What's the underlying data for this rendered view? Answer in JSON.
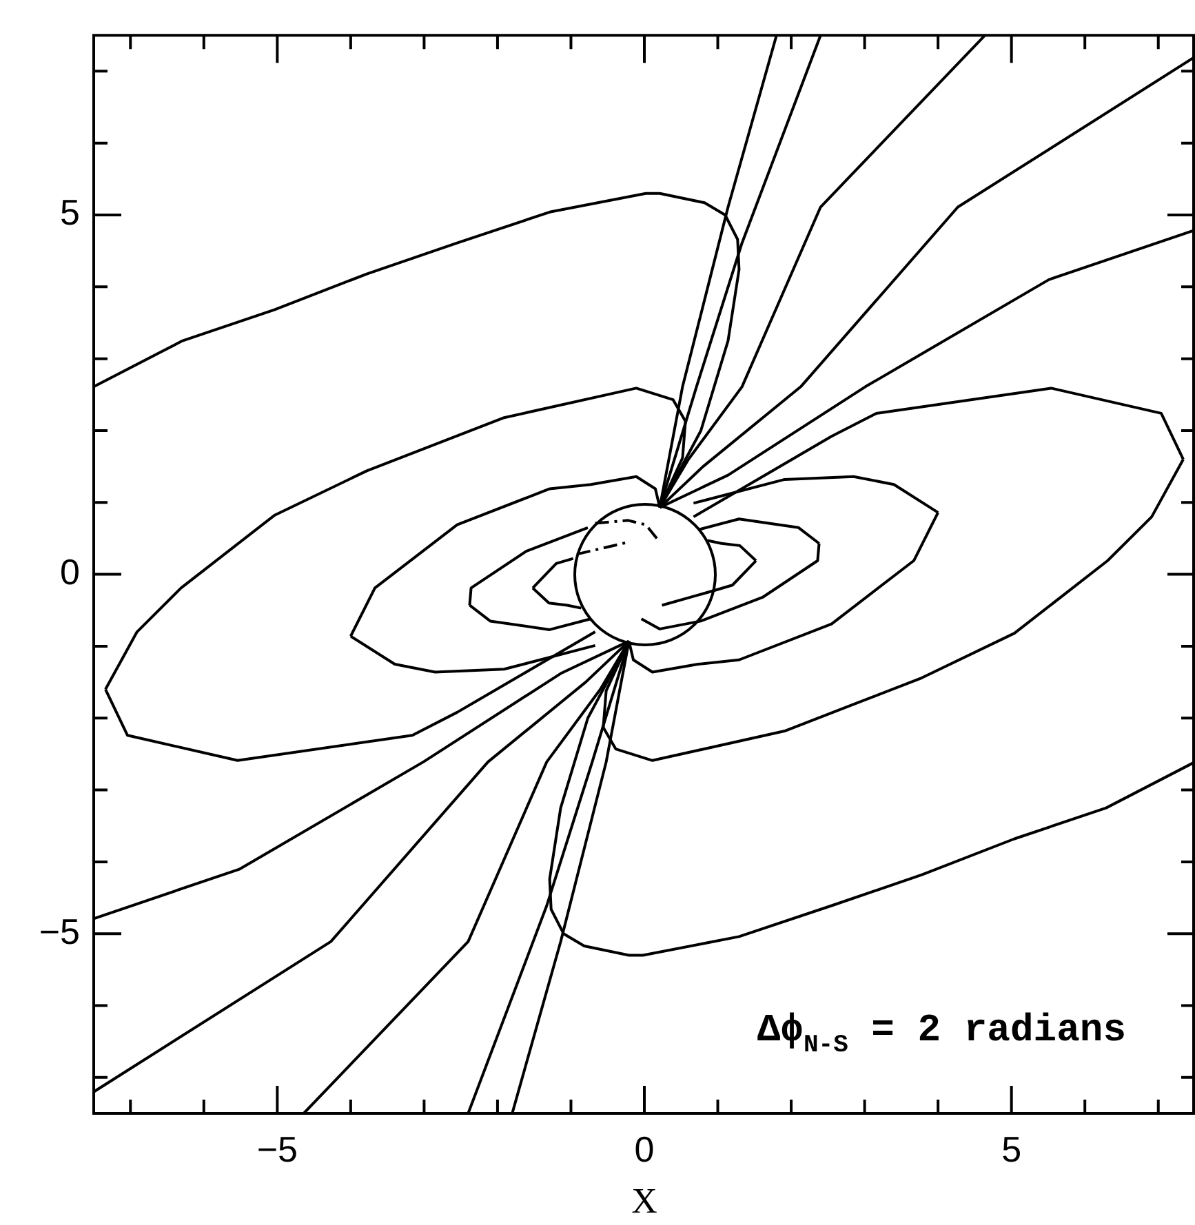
{
  "chart_data": {
    "type": "line",
    "xlabel": "X",
    "annotations": [
      "Δϕ$_{N-S}$ = 2 radians"
    ],
    "marker": "none",
    "xlim": [
      -7.5,
      7.5
    ],
    "ylim": [
      -7.5,
      7.5
    ],
    "xticks": [
      {
        "value": -7,
        "label": null
      },
      {
        "value": -6,
        "label": null
      },
      -5,
      {
        "value": -4,
        "label": null
      },
      {
        "value": -3,
        "label": null
      },
      {
        "value": -2,
        "label": null
      },
      {
        "value": -1,
        "label": null
      },
      0,
      {
        "value": 1,
        "label": null
      },
      {
        "value": 2,
        "label": null
      },
      {
        "value": 3,
        "label": null
      },
      {
        "value": 4,
        "label": null
      },
      5,
      {
        "value": 6,
        "label": null
      },
      {
        "value": 7,
        "label": null
      }
    ],
    "yticks": [
      {
        "value": -7,
        "label": null
      },
      {
        "value": -6,
        "label": null
      },
      -5,
      {
        "value": -4,
        "label": null
      },
      {
        "value": -3,
        "label": null
      },
      {
        "value": -2,
        "label": null
      },
      {
        "value": -1,
        "label": null
      },
      0,
      {
        "value": 1,
        "label": null
      },
      {
        "value": 2,
        "label": null
      },
      {
        "value": 3,
        "label": null
      },
      {
        "value": 4,
        "label": null
      },
      5,
      {
        "value": 6,
        "label": null
      },
      {
        "value": 7,
        "label": null
      }
    ],
    "series": [
      {
        "color": "#000000",
        "line_style": "solid",
        "x": [
          -7.5,
          -6.29,
          -5.04,
          -3.78,
          -2.55,
          -1.29,
          0.02,
          0.21,
          0.82,
          1.1,
          1.27,
          1.29,
          1.14,
          0.77,
          0.21
        ],
        "values": [
          2.61,
          3.25,
          3.68,
          4.18,
          4.61,
          5.04,
          5.3,
          5.3,
          5.17,
          5.0,
          4.66,
          4.24,
          3.25,
          2.0,
          0.93
        ]
      },
      {
        "color": "#000000",
        "line_style": "solid",
        "x": [
          7.5,
          6.29,
          5.04,
          3.78,
          2.55,
          1.29,
          -0.02,
          -0.21,
          -0.82,
          -1.1,
          -1.27,
          -1.29,
          -1.14,
          -0.77,
          -0.21
        ],
        "values": [
          -2.61,
          -3.25,
          -3.68,
          -4.18,
          -4.61,
          -5.04,
          -5.3,
          -5.3,
          -5.17,
          -5.0,
          -4.66,
          -4.24,
          -3.25,
          -2.0,
          -0.93
        ]
      },
      {
        "color": "#000000",
        "line_style": "solid",
        "x": [
          0.21,
          0.52,
          0.56
        ],
        "values": [
          0.93,
          1.62,
          2.13
        ]
      },
      {
        "color": "#000000",
        "line_style": "solid",
        "x": [
          0.56,
          0.39,
          -0.11,
          -1.91,
          -3.78,
          -5.04,
          -6.31,
          -6.91,
          -7.34
        ],
        "values": [
          2.13,
          2.43,
          2.59,
          2.18,
          1.44,
          0.82,
          -0.19,
          -0.8,
          -1.6
        ]
      },
      {
        "color": "#000000",
        "line_style": "solid",
        "x": [
          -7.34,
          -7.04,
          -5.54,
          -3.16,
          -2.55,
          -1.61,
          -0.67
        ],
        "values": [
          -1.6,
          -2.24,
          -2.59,
          -2.24,
          -1.92,
          -1.36,
          -0.8
        ]
      },
      {
        "color": "#000000",
        "line_style": "solid",
        "x": [
          -0.21,
          -0.52,
          -0.56
        ],
        "values": [
          -0.93,
          -1.62,
          -2.13
        ]
      },
      {
        "color": "#000000",
        "line_style": "solid",
        "x": [
          -0.56,
          -0.39,
          0.11,
          1.91,
          3.78,
          5.04,
          6.31,
          6.91,
          7.34
        ],
        "values": [
          -2.13,
          -2.43,
          -2.59,
          -2.18,
          -1.44,
          -0.82,
          0.19,
          0.8,
          1.6
        ]
      },
      {
        "color": "#000000",
        "line_style": "solid",
        "x": [
          7.34,
          7.04,
          5.54,
          3.16,
          2.55,
          1.61,
          0.67
        ],
        "values": [
          1.6,
          2.24,
          2.59,
          2.24,
          1.92,
          1.36,
          0.8
        ]
      },
      {
        "color": "#000000",
        "line_style": "solid",
        "x": [
          0.21,
          0.15,
          -0.11,
          -0.73,
          -1.29,
          -2.55,
          -3.67,
          -4.0
        ],
        "values": [
          0.93,
          1.19,
          1.36,
          1.25,
          1.19,
          0.69,
          -0.19,
          -0.86
        ]
      },
      {
        "color": "#000000",
        "line_style": "solid",
        "x": [
          -4.0,
          -3.4,
          -2.85,
          -1.91,
          -0.67
        ],
        "values": [
          -0.86,
          -1.25,
          -1.36,
          -1.32,
          -0.99
        ]
      },
      {
        "color": "#000000",
        "line_style": "solid",
        "x": [
          -0.21,
          -0.15,
          0.11,
          0.73,
          1.29,
          2.55,
          3.67,
          4.0
        ],
        "values": [
          -0.93,
          -1.19,
          -1.36,
          -1.25,
          -1.19,
          -0.69,
          0.19,
          0.86
        ]
      },
      {
        "color": "#000000",
        "line_style": "solid",
        "x": [
          4.0,
          3.4,
          2.85,
          1.91,
          0.67
        ],
        "values": [
          0.86,
          1.25,
          1.36,
          1.32,
          0.99
        ]
      },
      {
        "color": "#000000",
        "line_style": "solid",
        "x": [
          -0.77,
          -1.61,
          -2.36,
          -2.38
        ],
        "values": [
          0.65,
          0.32,
          -0.19,
          -0.43
        ]
      },
      {
        "color": "#000000",
        "line_style": "solid",
        "x": [
          -2.38,
          -2.1,
          -1.29,
          -0.73
        ],
        "values": [
          -0.43,
          -0.65,
          -0.77,
          -0.62
        ]
      },
      {
        "color": "#000000",
        "line_style": "solid",
        "x": [
          -0.04,
          0.21,
          0.77,
          1.61,
          2.36,
          2.38
        ],
        "values": [
          -0.62,
          -0.76,
          -0.65,
          -0.32,
          0.19,
          0.43
        ]
      },
      {
        "color": "#000000",
        "line_style": "solid",
        "x": [
          2.38,
          2.1,
          1.29,
          0.73
        ],
        "values": [
          0.43,
          0.65,
          0.77,
          0.62
        ]
      },
      {
        "color": "#000000",
        "line_style": "solid",
        "x": [
          -0.97,
          -1.2,
          -1.52
        ],
        "values": [
          0.22,
          0.15,
          -0.19
        ]
      },
      {
        "color": "#000000",
        "line_style": "solid",
        "x": [
          -1.52,
          -1.3,
          -1.05,
          -0.86
        ],
        "values": [
          -0.19,
          -0.4,
          -0.43,
          -0.47
        ]
      },
      {
        "color": "#000000",
        "line_style": "solid",
        "x": [
          0.24,
          0.97,
          1.2,
          1.52
        ],
        "values": [
          -0.43,
          -0.22,
          -0.15,
          0.19
        ]
      },
      {
        "color": "#000000",
        "line_style": "solid",
        "x": [
          1.52,
          1.3,
          1.05,
          0.86
        ],
        "values": [
          0.19,
          0.4,
          0.43,
          0.47
        ]
      },
      {
        "color": "#000000",
        "line_style": "dashed",
        "x": [
          -0.67,
          -0.22,
          0.02,
          0.17
        ],
        "values": [
          0.71,
          0.75,
          0.69,
          0.5
        ]
      },
      {
        "color": "#000000",
        "line_style": "dashed",
        "x": [
          -0.92,
          -0.21
        ],
        "values": [
          0.28,
          0.45
        ]
      },
      {
        "color": "#000000",
        "line_style": "solid",
        "x": [
          0.21,
          0.52,
          1.14,
          1.8
        ],
        "values": [
          0.93,
          2.61,
          5.11,
          7.5
        ]
      },
      {
        "color": "#000000",
        "line_style": "solid",
        "x": [
          0.21,
          0.71,
          1.33,
          2.4
        ],
        "values": [
          0.93,
          2.61,
          4.61,
          7.5
        ]
      },
      {
        "color": "#000000",
        "line_style": "solid",
        "x": [
          0.21,
          0.6,
          1.33,
          2.4,
          4.64
        ],
        "values": [
          0.93,
          1.6,
          2.61,
          5.11,
          7.5
        ]
      },
      {
        "color": "#000000",
        "line_style": "solid",
        "x": [
          0.21,
          0.8,
          2.13,
          4.27,
          7.5
        ],
        "values": [
          0.93,
          1.5,
          2.61,
          5.11,
          7.2
        ]
      },
      {
        "color": "#000000",
        "line_style": "solid",
        "x": [
          0.21,
          1.14,
          3.01,
          5.51,
          7.5
        ],
        "values": [
          0.93,
          1.38,
          2.61,
          4.1,
          4.79
        ]
      },
      {
        "color": "#000000",
        "line_style": "solid",
        "x": [
          -0.21,
          -0.52,
          -1.14,
          -1.8
        ],
        "values": [
          -0.93,
          -2.61,
          -5.11,
          -7.5
        ]
      },
      {
        "color": "#000000",
        "line_style": "solid",
        "x": [
          -0.21,
          -0.71,
          -1.33,
          -2.4
        ],
        "values": [
          -0.93,
          -2.61,
          -4.61,
          -7.5
        ]
      },
      {
        "color": "#000000",
        "line_style": "solid",
        "x": [
          -0.21,
          -0.6,
          -1.33,
          -2.4,
          -4.64
        ],
        "values": [
          -0.93,
          -1.6,
          -2.61,
          -5.11,
          -7.5
        ]
      },
      {
        "color": "#000000",
        "line_style": "solid",
        "x": [
          -0.21,
          -0.8,
          -2.13,
          -4.27,
          -7.5
        ],
        "values": [
          -0.93,
          -1.5,
          -2.61,
          -5.11,
          -7.2
        ]
      },
      {
        "color": "#000000",
        "line_style": "solid",
        "x": [
          -0.21,
          -1.14,
          -3.01,
          -5.51,
          -7.5
        ],
        "values": [
          -0.93,
          -1.38,
          -2.61,
          -4.1,
          -4.79
        ]
      }
    ]
  }
}
